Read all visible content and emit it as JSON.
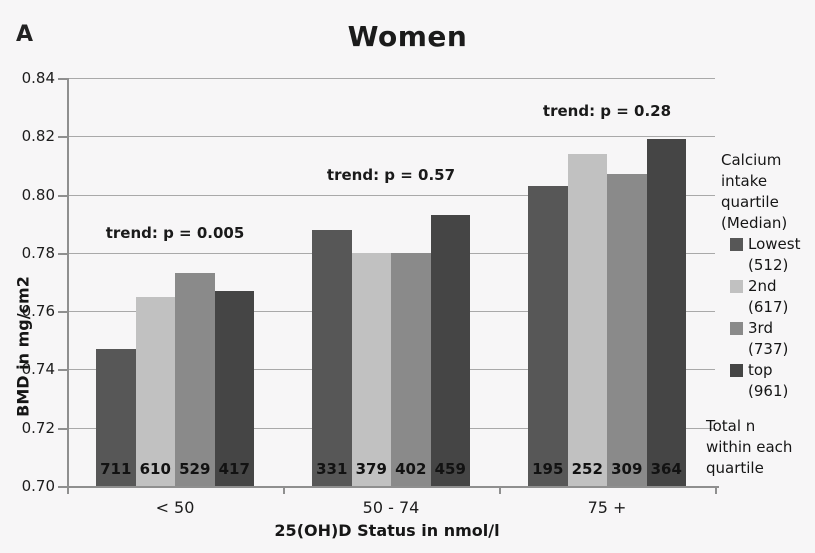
{
  "panel_label": "A",
  "chart_data": {
    "type": "bar",
    "title": "Women",
    "xlabel": "25(OH)D Status in nmol/l",
    "ylabel": "BMD in mg/cm2",
    "ylim": [
      0.7,
      0.84
    ],
    "ytick_step": 0.02,
    "grid": true,
    "legend_position": "right",
    "categories": [
      "< 50",
      "50 - 74",
      "75 +"
    ],
    "series": [
      {
        "name": "Lowest (512)",
        "color": "#575757",
        "values": [
          0.747,
          0.788,
          0.803
        ]
      },
      {
        "name": "2nd (617)",
        "color": "#c1c1c1",
        "values": [
          0.765,
          0.78,
          0.814
        ]
      },
      {
        "name": "3rd (737)",
        "color": "#8a8a8a",
        "values": [
          0.773,
          0.78,
          0.807
        ]
      },
      {
        "name": "top (961)",
        "color": "#454545",
        "values": [
          0.767,
          0.793,
          0.819
        ]
      }
    ],
    "bar_counts": [
      [
        711,
        610,
        529,
        417
      ],
      [
        331,
        379,
        402,
        459
      ],
      [
        195,
        252,
        309,
        364
      ]
    ],
    "annotations": [
      "trend: p = 0.005",
      "trend: p = 0.57",
      "trend: p = 0.28"
    ]
  },
  "legend": {
    "header_lines": [
      "Calcium",
      "intake",
      "quartile",
      "(Median)"
    ],
    "items": [
      {
        "label": "Lowest",
        "median": "(512)",
        "color": "#575757"
      },
      {
        "label": "2nd",
        "median": "(617)",
        "color": "#c1c1c1"
      },
      {
        "label": "3rd",
        "median": "(737)",
        "color": "#8a8a8a"
      },
      {
        "label": "top",
        "median": "(961)",
        "color": "#454545"
      }
    ],
    "footnote_lines": [
      "Total n",
      "within each",
      "quartile"
    ]
  }
}
